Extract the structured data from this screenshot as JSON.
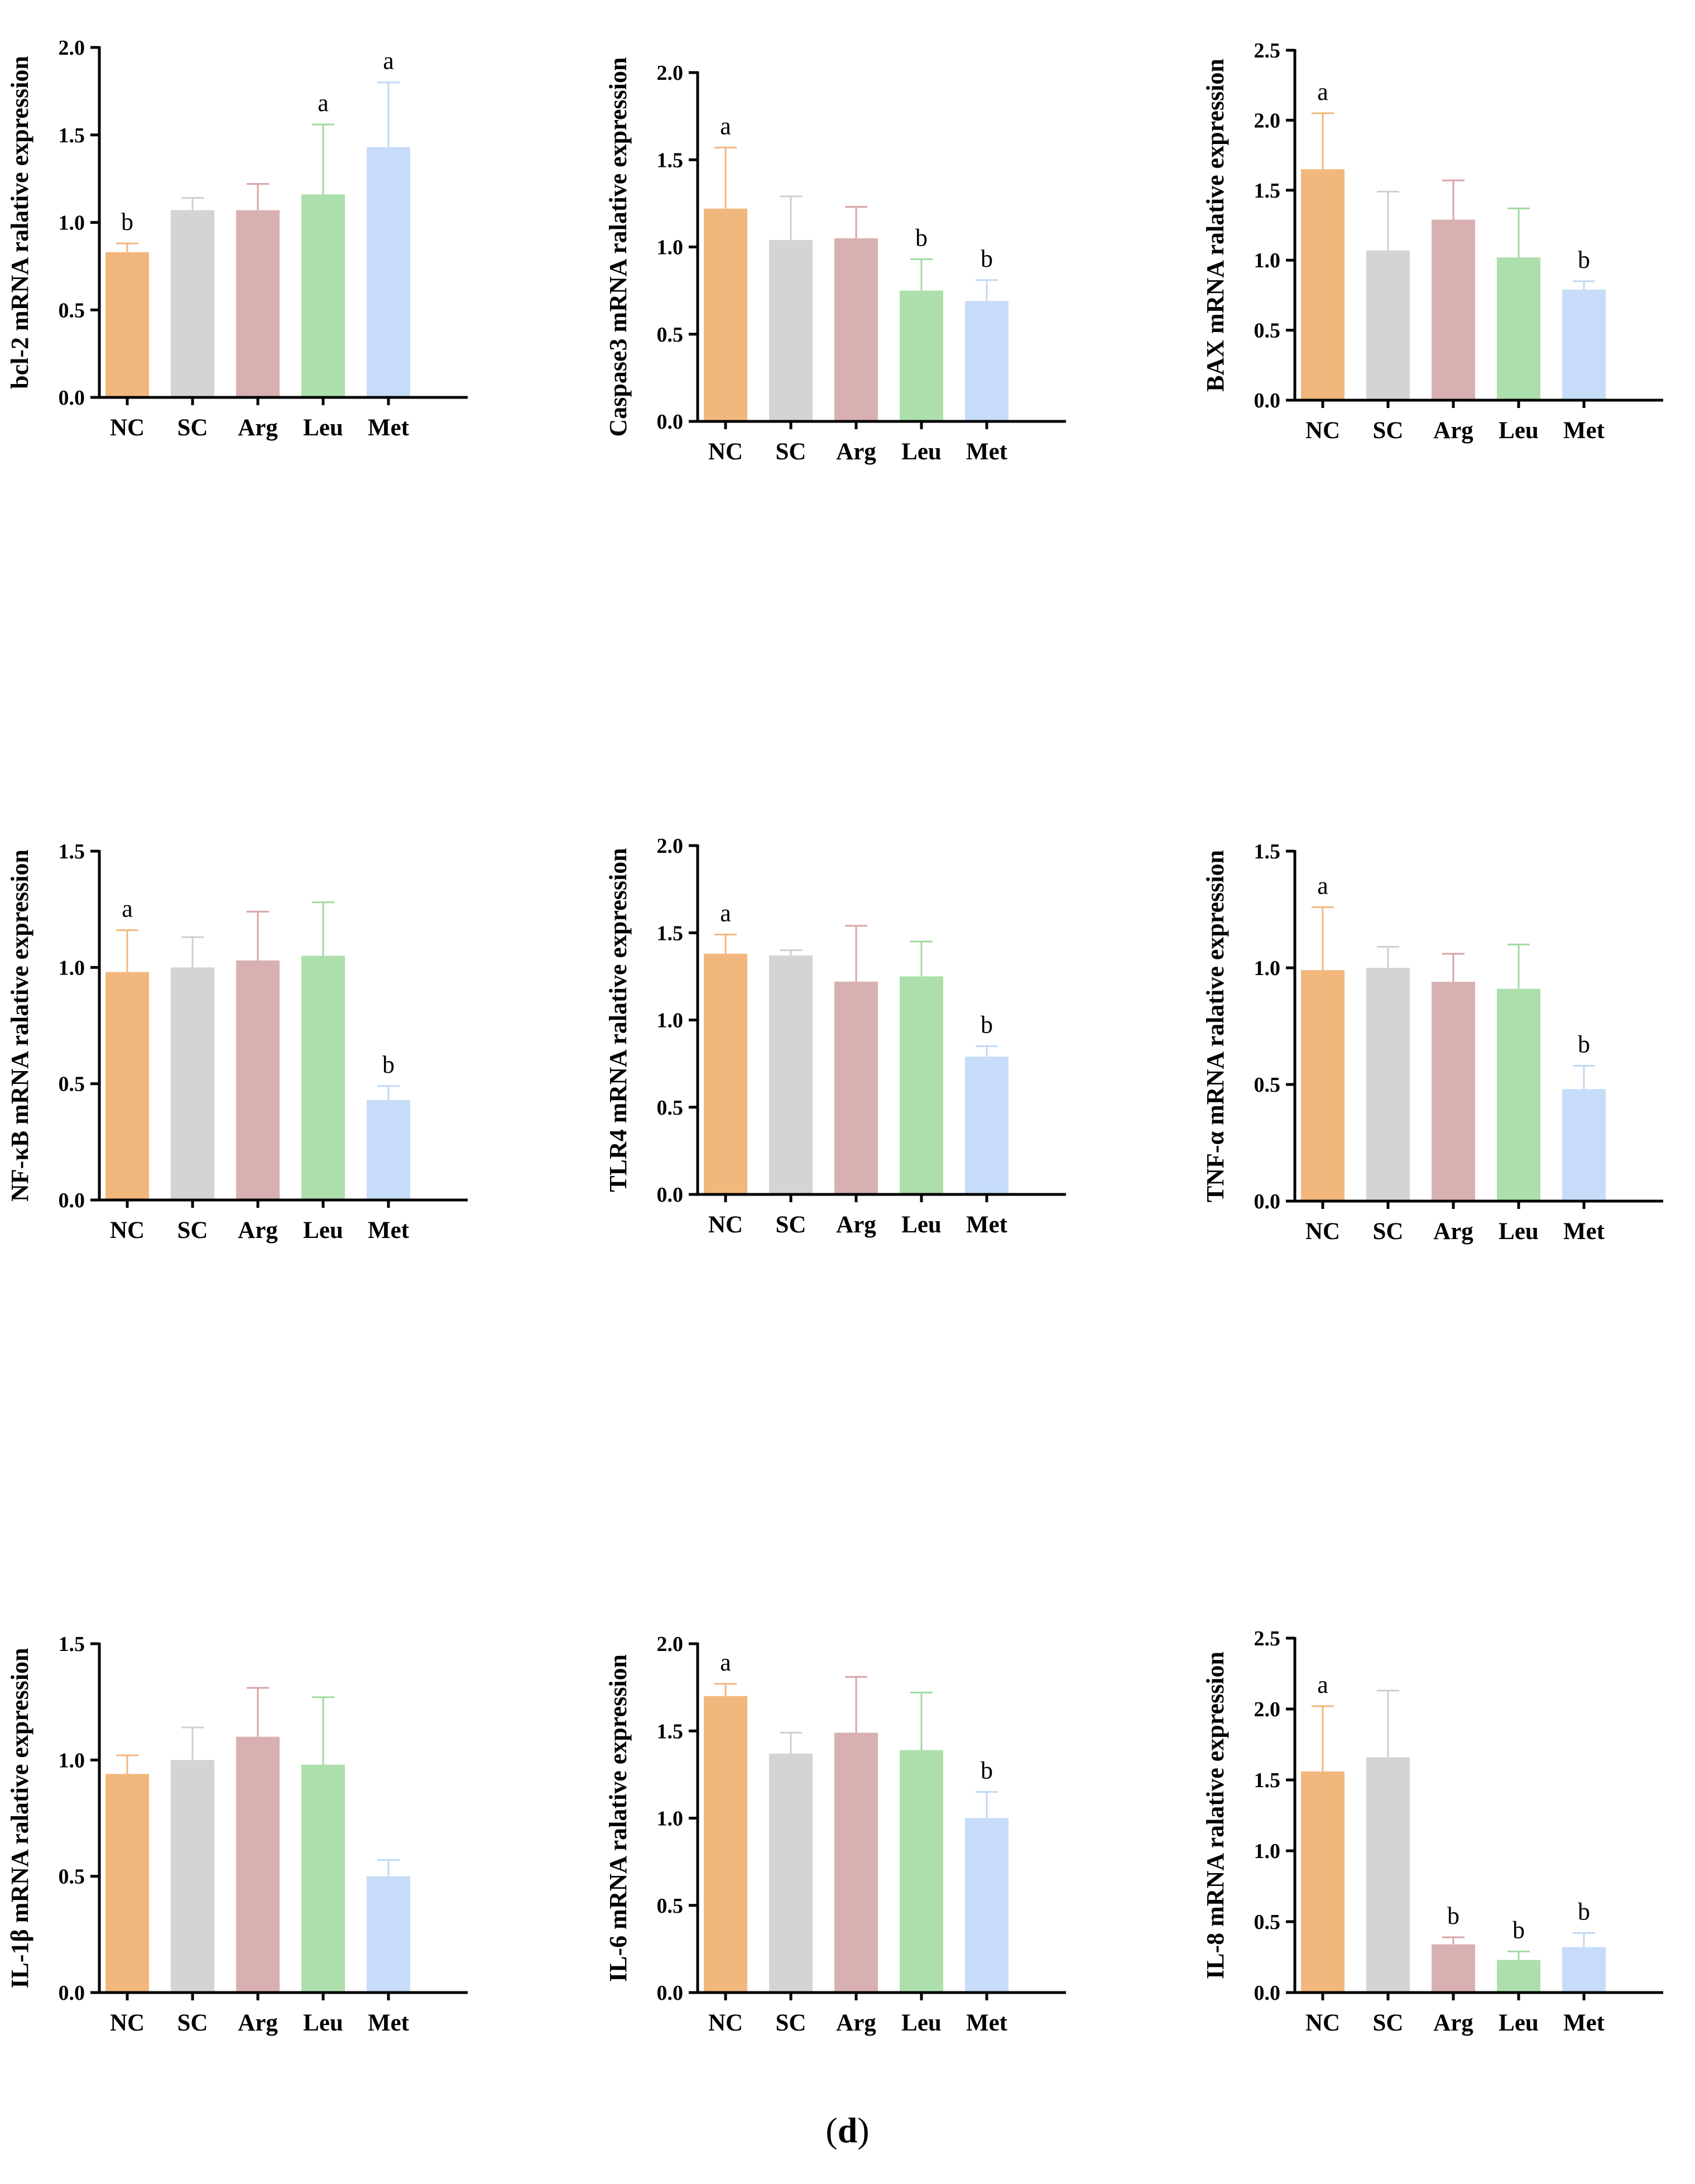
{
  "figure_label": "(d)",
  "colors": {
    "NC": "#f2b77d",
    "SC": "#d4d4d4",
    "Arg": "#d9b0b1",
    "Leu": "#acdfac",
    "Met": "#c6dcf8",
    "err_NC": "#f2b77d",
    "err_SC": "#cfcfcf",
    "err_Arg": "#d9a3a5",
    "err_Leu": "#9fd99f",
    "err_Met": "#c0d8f5"
  },
  "chart_data": [
    {
      "type": "bar",
      "ylabel": "bcl-2 mRNA ralative expression",
      "categories": [
        "NC",
        "SC",
        "Arg",
        "Leu",
        "Met"
      ],
      "values": [
        0.83,
        1.07,
        1.07,
        1.16,
        1.43
      ],
      "errors": [
        0.05,
        0.07,
        0.15,
        0.4,
        0.37
      ],
      "letters": [
        "b",
        "",
        "",
        "a",
        "a"
      ],
      "ylim": [
        0,
        2.0
      ],
      "yticks": [
        "0.0",
        "0.5",
        "1.0",
        "1.5",
        "2.0"
      ]
    },
    {
      "type": "bar",
      "ylabel": "Caspase3 mRNA ralative expression",
      "categories": [
        "NC",
        "SC",
        "Arg",
        "Leu",
        "Met"
      ],
      "values": [
        1.22,
        1.04,
        1.05,
        0.75,
        0.69
      ],
      "errors": [
        0.35,
        0.25,
        0.18,
        0.18,
        0.12
      ],
      "letters": [
        "a",
        "",
        "",
        "b",
        "b"
      ],
      "ylim": [
        0,
        2.0
      ],
      "yticks": [
        "0.0",
        "0.5",
        "1.0",
        "1.5",
        "2.0"
      ]
    },
    {
      "type": "bar",
      "ylabel": "BAX mRNA ralative expression",
      "categories": [
        "NC",
        "SC",
        "Arg",
        "Leu",
        "Met"
      ],
      "values": [
        1.65,
        1.07,
        1.29,
        1.02,
        0.79
      ],
      "errors": [
        0.4,
        0.42,
        0.28,
        0.35,
        0.06
      ],
      "letters": [
        "a",
        "",
        "",
        "",
        "b"
      ],
      "ylim": [
        0,
        2.5
      ],
      "yticks": [
        "0.0",
        "0.5",
        "1.0",
        "1.5",
        "2.0",
        "2.5"
      ]
    },
    {
      "type": "bar",
      "ylabel": "NF-κB mRNA ralative expression",
      "categories": [
        "NC",
        "SC",
        "Arg",
        "Leu",
        "Met"
      ],
      "values": [
        0.98,
        1.0,
        1.03,
        1.05,
        0.43
      ],
      "errors": [
        0.18,
        0.13,
        0.21,
        0.23,
        0.06
      ],
      "letters": [
        "a",
        "",
        "",
        "",
        "b"
      ],
      "ylim": [
        0,
        1.5
      ],
      "yticks": [
        "0.0",
        "0.5",
        "1.0",
        "1.5"
      ]
    },
    {
      "type": "bar",
      "ylabel": "TLR4 mRNA ralative expression",
      "categories": [
        "NC",
        "SC",
        "Arg",
        "Leu",
        "Met"
      ],
      "values": [
        1.38,
        1.37,
        1.22,
        1.25,
        0.79
      ],
      "errors": [
        0.11,
        0.03,
        0.32,
        0.2,
        0.06
      ],
      "letters": [
        "a",
        "",
        "",
        "",
        "b"
      ],
      "ylim": [
        0,
        2.0
      ],
      "yticks": [
        "0.0",
        "0.5",
        "1.0",
        "1.5",
        "2.0"
      ]
    },
    {
      "type": "bar",
      "ylabel": "TNF-α mRNA ralative expression",
      "categories": [
        "NC",
        "SC",
        "Arg",
        "Leu",
        "Met"
      ],
      "values": [
        0.99,
        1.0,
        0.94,
        0.91,
        0.48
      ],
      "errors": [
        0.27,
        0.09,
        0.12,
        0.19,
        0.1
      ],
      "letters": [
        "a",
        "",
        "",
        "",
        "b"
      ],
      "ylim": [
        0,
        1.5
      ],
      "yticks": [
        "0.0",
        "0.5",
        "1.0",
        "1.5"
      ]
    },
    {
      "type": "bar",
      "ylabel": "IL-1β mRNA ralative expression",
      "categories": [
        "NC",
        "SC",
        "Arg",
        "Leu",
        "Met"
      ],
      "values": [
        0.94,
        1.0,
        1.1,
        0.98,
        0.5
      ],
      "errors": [
        0.08,
        0.14,
        0.21,
        0.29,
        0.07
      ],
      "letters": [
        "",
        "",
        "",
        "",
        ""
      ],
      "ylim": [
        0,
        1.5
      ],
      "yticks": [
        "0.0",
        "0.5",
        "1.0",
        "1.5"
      ]
    },
    {
      "type": "bar",
      "ylabel": "IL-6 mRNA ralative expression",
      "categories": [
        "NC",
        "SC",
        "Arg",
        "Leu",
        "Met"
      ],
      "values": [
        1.7,
        1.37,
        1.49,
        1.39,
        1.0
      ],
      "errors": [
        0.07,
        0.12,
        0.32,
        0.33,
        0.15
      ],
      "letters": [
        "a",
        "",
        "",
        "",
        "b"
      ],
      "ylim": [
        0,
        2.0
      ],
      "yticks": [
        "0.0",
        "0.5",
        "1.0",
        "1.5",
        "2.0"
      ]
    },
    {
      "type": "bar",
      "ylabel": "IL-8 mRNA ralative expression",
      "categories": [
        "NC",
        "SC",
        "Arg",
        "Leu",
        "Met"
      ],
      "values": [
        1.56,
        1.66,
        0.34,
        0.23,
        0.32
      ],
      "errors": [
        0.46,
        0.47,
        0.05,
        0.06,
        0.1
      ],
      "letters": [
        "a",
        "",
        "b",
        "b",
        "b"
      ],
      "ylim": [
        0,
        2.5
      ],
      "yticks": [
        "0.0",
        "0.5",
        "1.0",
        "1.5",
        "2.0",
        "2.5"
      ]
    }
  ]
}
